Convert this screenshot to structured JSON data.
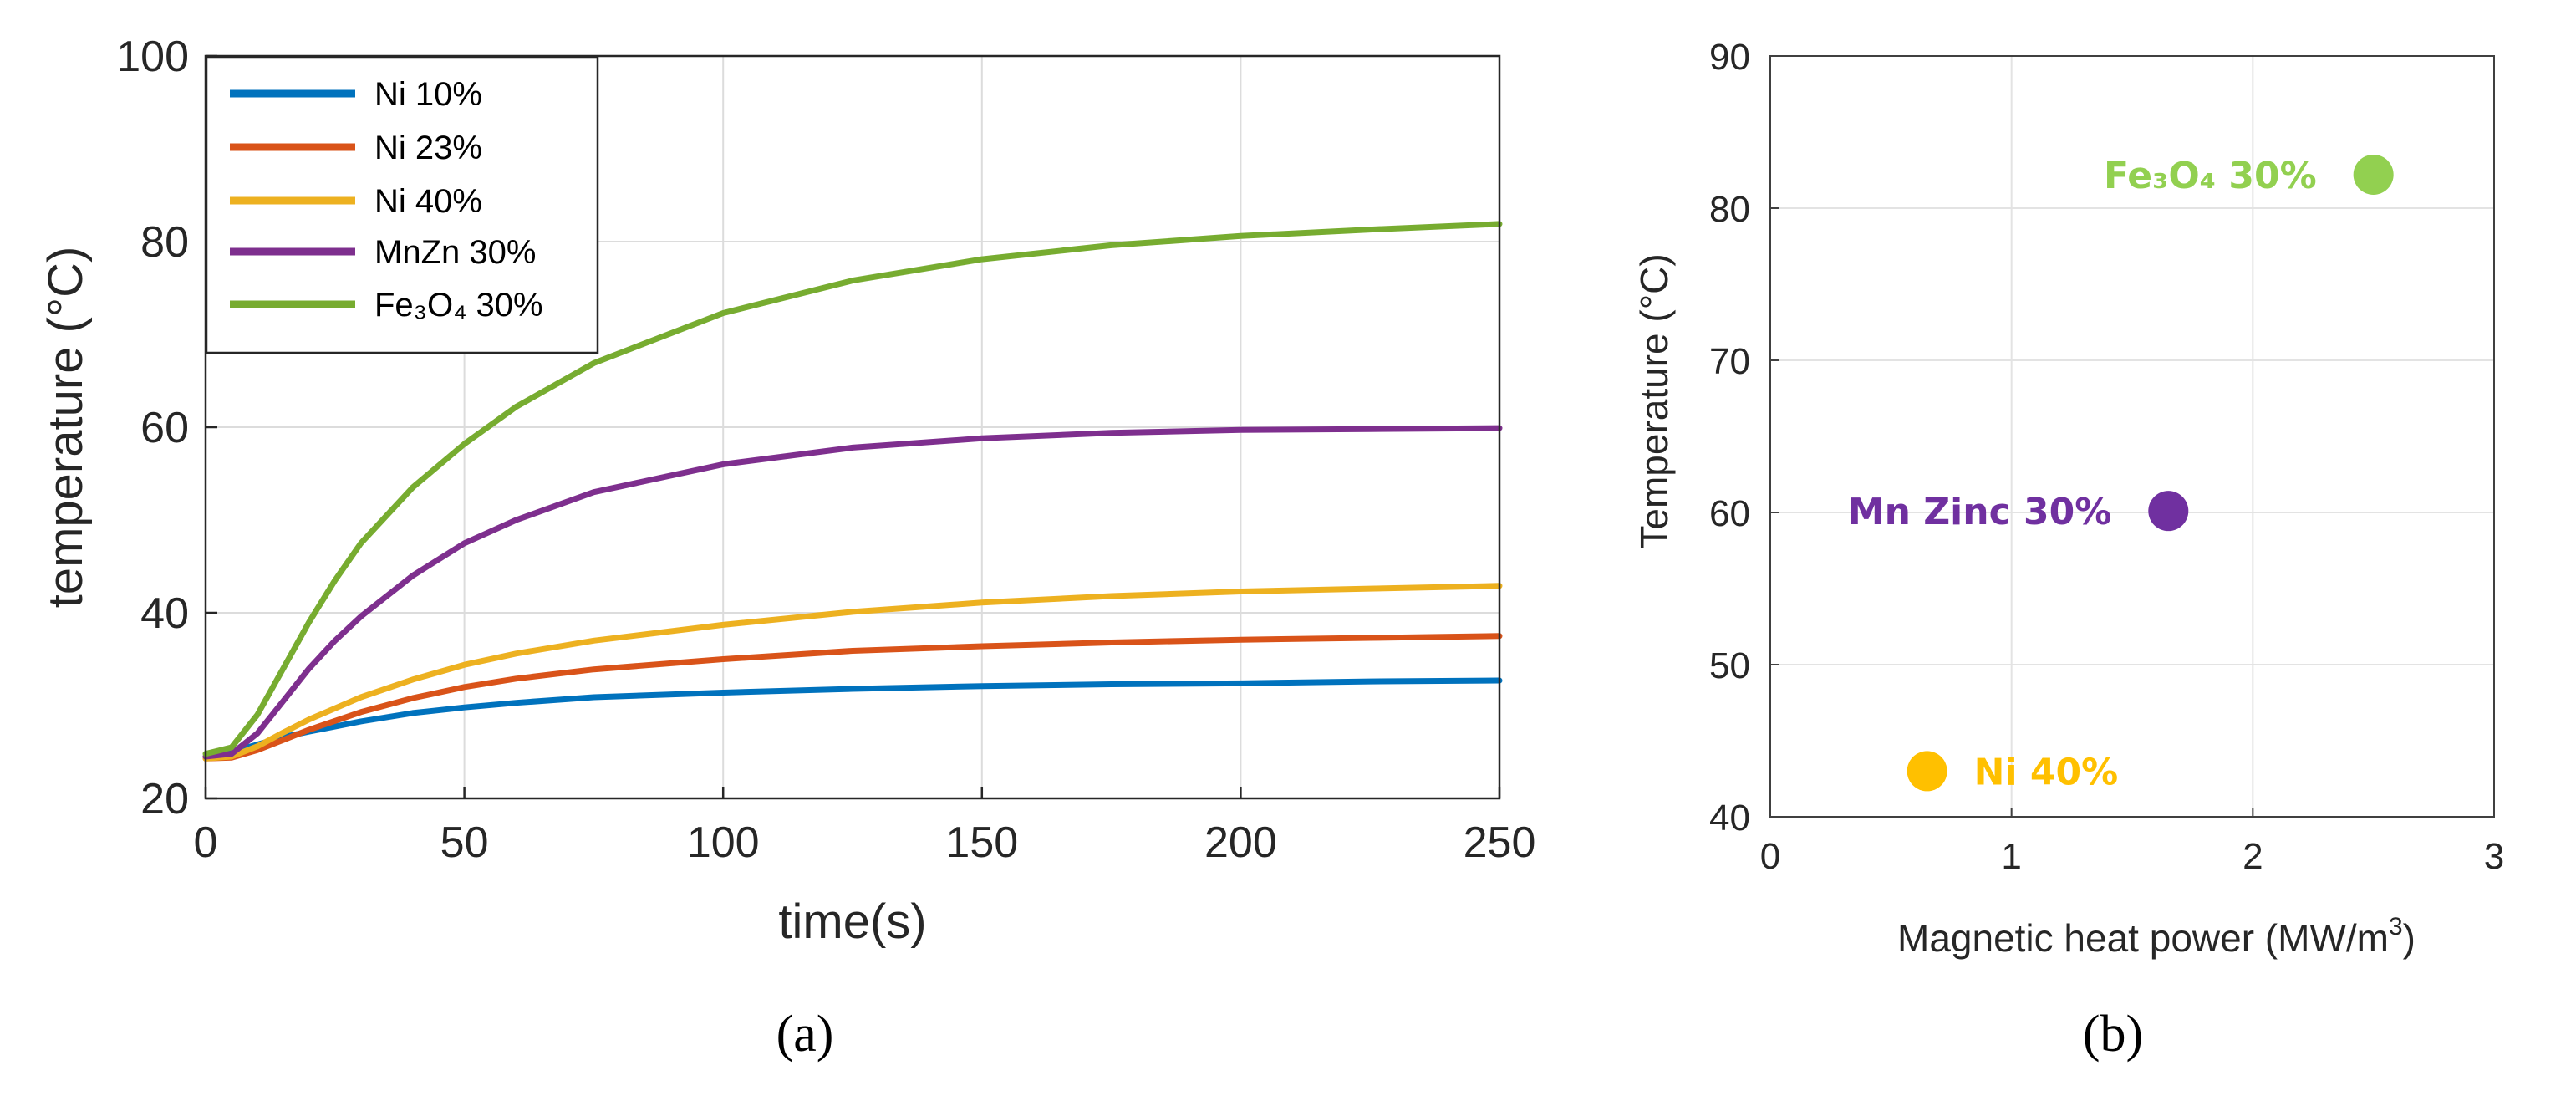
{
  "colors": {
    "ni10": "#0072BD",
    "ni23": "#D95319",
    "ni40": "#EDB120",
    "mnzn": "#7E2F8E",
    "fe3o4": "#77AC30",
    "b_fe": "#92D050",
    "b_mn": "#7030A0",
    "b_ni": "#FFC000"
  },
  "panels": {
    "a_label": "(a)",
    "b_label": "(b)"
  },
  "chart_data": [
    {
      "type": "line",
      "panel": "a",
      "xlabel": "time(s)",
      "ylabel": "temperature (°C)",
      "xlim": [
        0,
        250
      ],
      "ylim": [
        20,
        100
      ],
      "xticks": [
        "0",
        "50",
        "100",
        "150",
        "200",
        "250"
      ],
      "yticks": [
        "20",
        "40",
        "60",
        "80",
        "100"
      ],
      "grid": true,
      "legend_position": "top-left",
      "series": [
        {
          "name": "Ni 10%",
          "color_key": "ni10",
          "x": [
            0,
            5,
            10,
            15,
            20,
            30,
            40,
            50,
            60,
            75,
            100,
            125,
            150,
            175,
            200,
            225,
            250
          ],
          "y": [
            24.5,
            25,
            25.8,
            26.6,
            27.2,
            28.3,
            29.2,
            29.8,
            30.3,
            30.9,
            31.4,
            31.8,
            32.1,
            32.3,
            32.4,
            32.6,
            32.7
          ]
        },
        {
          "name": "Ni 23%",
          "color_key": "ni23",
          "x": [
            0,
            5,
            10,
            15,
            20,
            30,
            40,
            50,
            60,
            75,
            100,
            125,
            150,
            175,
            200,
            225,
            250
          ],
          "y": [
            24.3,
            24.4,
            25.2,
            26.3,
            27.4,
            29.3,
            30.8,
            32,
            32.9,
            33.9,
            35,
            35.9,
            36.4,
            36.8,
            37.1,
            37.3,
            37.5
          ]
        },
        {
          "name": "Ni 40%",
          "color_key": "ni40",
          "x": [
            0,
            5,
            10,
            15,
            20,
            30,
            40,
            50,
            60,
            75,
            100,
            125,
            150,
            175,
            200,
            225,
            250
          ],
          "y": [
            24.3,
            24.5,
            25.6,
            27.1,
            28.5,
            30.9,
            32.8,
            34.4,
            35.6,
            37,
            38.7,
            40.1,
            41.1,
            41.8,
            42.3,
            42.6,
            42.9
          ]
        },
        {
          "name": "MnZn 30%",
          "color_key": "mnzn",
          "x": [
            0,
            5,
            10,
            15,
            20,
            25,
            30,
            40,
            50,
            60,
            75,
            100,
            125,
            150,
            175,
            200,
            225,
            250
          ],
          "y": [
            24.5,
            24.8,
            27,
            30.5,
            34,
            37,
            39.6,
            44,
            47.5,
            50,
            53,
            56,
            57.8,
            58.8,
            59.4,
            59.7,
            59.8,
            59.9
          ]
        },
        {
          "name": "Fe3O4 30%",
          "display_name": "Fe₃O₄ 30%",
          "color_key": "fe3o4",
          "x": [
            0,
            5,
            10,
            15,
            20,
            25,
            30,
            40,
            50,
            60,
            75,
            100,
            125,
            150,
            175,
            200,
            225,
            250
          ],
          "y": [
            24.8,
            25.5,
            29,
            34,
            39,
            43.5,
            47.5,
            53.5,
            58.2,
            62.2,
            66.9,
            72.3,
            75.8,
            78.1,
            79.6,
            80.6,
            81.3,
            81.9
          ]
        }
      ]
    },
    {
      "type": "scatter",
      "panel": "b",
      "xlabel": "Magnetic heat power (MW/m",
      "xlabel_sup": "3",
      "xlabel_end": ")",
      "ylabel": "Temperature (°C)",
      "xlim": [
        0,
        3
      ],
      "ylim": [
        40,
        90
      ],
      "xticks": [
        "0",
        "1",
        "2",
        "3"
      ],
      "yticks": [
        "40",
        "50",
        "60",
        "70",
        "80",
        "90"
      ],
      "grid": true,
      "points": [
        {
          "label": "Fe₃O₄ 30%",
          "x": 2.5,
          "y": 82.2,
          "color_key": "b_fe",
          "label_side": "left"
        },
        {
          "label": "Mn Zinc 30%",
          "x": 1.65,
          "y": 60.1,
          "color_key": "b_mn",
          "label_side": "left"
        },
        {
          "label": "Ni 40%",
          "x": 0.65,
          "y": 43,
          "color_key": "b_ni",
          "label_side": "right"
        }
      ]
    }
  ]
}
